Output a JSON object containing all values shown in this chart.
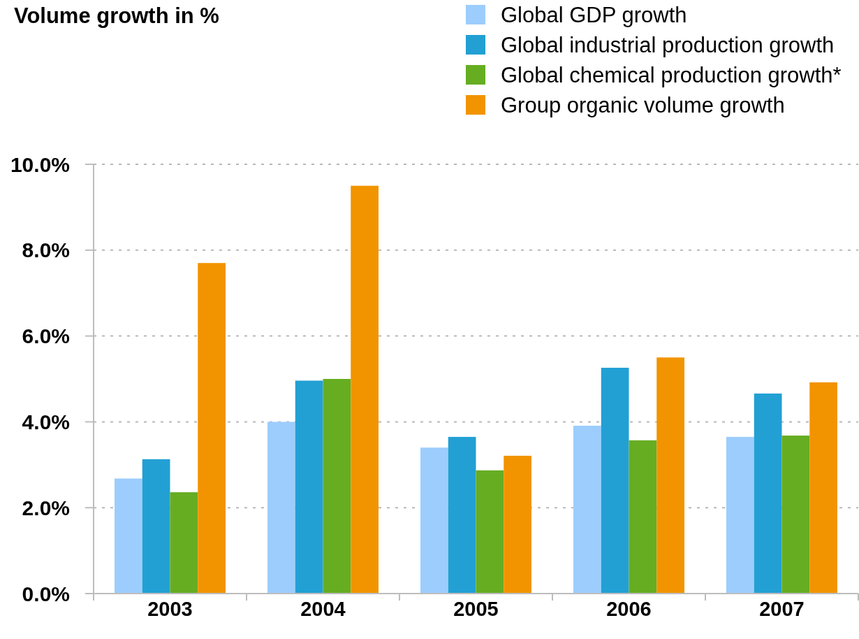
{
  "chart_data": {
    "type": "bar",
    "title": "Volume growth in %",
    "categories": [
      "2003",
      "2004",
      "2005",
      "2006",
      "2007"
    ],
    "series": [
      {
        "name": "Global GDP growth",
        "color": "#9ccdfd",
        "values": [
          2.68,
          4.0,
          3.4,
          3.91,
          3.65
        ]
      },
      {
        "name": "Global industrial production growth",
        "color": "#22a0d4",
        "values": [
          3.13,
          4.96,
          3.65,
          5.26,
          4.66
        ]
      },
      {
        "name": "Global chemical production growth*",
        "color": "#66ad22",
        "values": [
          2.36,
          5.0,
          2.87,
          3.57,
          3.68
        ]
      },
      {
        "name": "Group organic volume growth",
        "color": "#f29400",
        "values": [
          7.7,
          9.5,
          3.21,
          5.5,
          4.92
        ]
      }
    ],
    "ylim": [
      0,
      10
    ],
    "yticks": [
      {
        "value": 0,
        "label": "0.0%"
      },
      {
        "value": 2,
        "label": "2.0%"
      },
      {
        "value": 4,
        "label": "4.0%"
      },
      {
        "value": 6,
        "label": "6.0%"
      },
      {
        "value": 8,
        "label": "8.0%"
      },
      {
        "value": 10,
        "label": "10.0%"
      }
    ],
    "grid": "y",
    "legend": "top right"
  }
}
